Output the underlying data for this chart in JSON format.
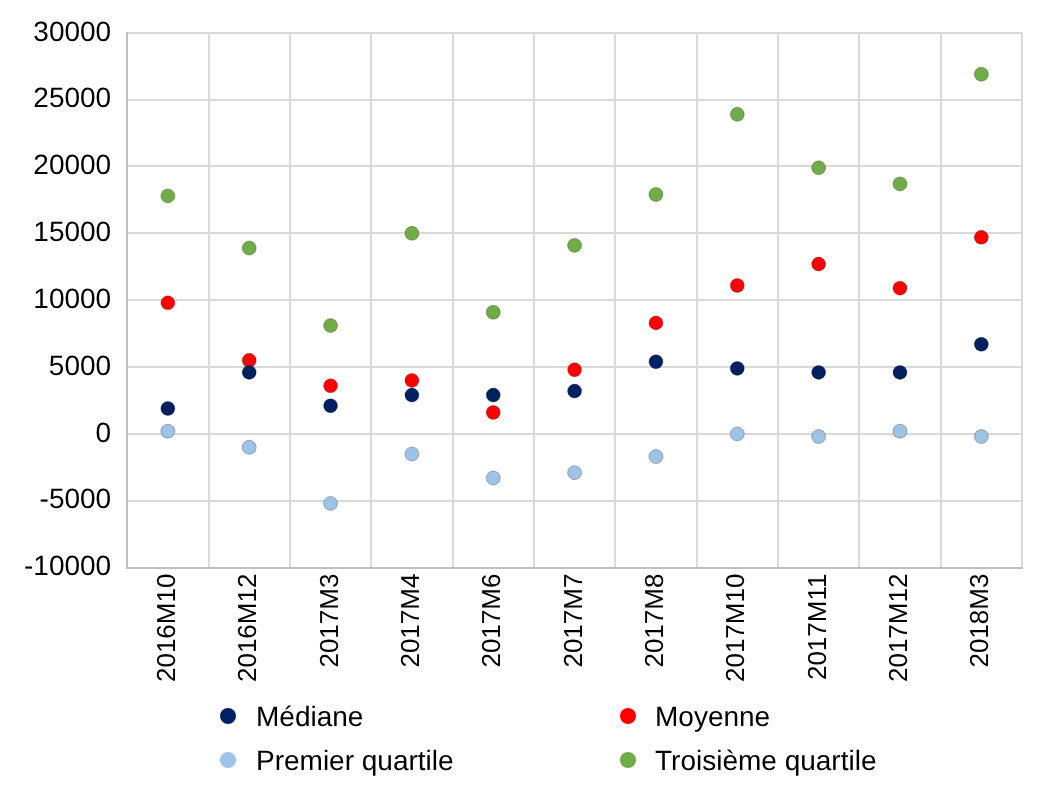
{
  "chart_data": {
    "type": "scatter",
    "categories": [
      "2016M10",
      "2016M12",
      "2017M3",
      "2017M4",
      "2017M6",
      "2017M7",
      "2017M8",
      "2017M10",
      "2017M11",
      "2017M12",
      "2018M3"
    ],
    "series": [
      {
        "name": "Médiane",
        "color": "#002060",
        "values": [
          1900,
          4600,
          2100,
          2900,
          2900,
          3200,
          5400,
          4900,
          4600,
          4600,
          6700
        ]
      },
      {
        "name": "Moyenne",
        "color": "#ff0000",
        "values": [
          9800,
          5500,
          3600,
          4000,
          1600,
          4800,
          8300,
          11100,
          12700,
          10900,
          14700
        ]
      },
      {
        "name": "Premier quartile",
        "color": "#9dc3e6",
        "values": [
          200,
          -1000,
          -5200,
          -1500,
          -3300,
          -2900,
          -1700,
          0,
          -200,
          200,
          -200
        ]
      },
      {
        "name": "Troisième quartile",
        "color": "#70ad47",
        "values": [
          17800,
          13900,
          8100,
          15000,
          9100,
          14100,
          17900,
          23900,
          19900,
          18700,
          26900
        ]
      }
    ],
    "ylim": [
      -10000,
      30000
    ],
    "yticks": [
      -10000,
      -5000,
      0,
      5000,
      10000,
      15000,
      20000,
      25000,
      30000
    ],
    "grid": true,
    "legend": "bottom",
    "marker": "circle"
  }
}
